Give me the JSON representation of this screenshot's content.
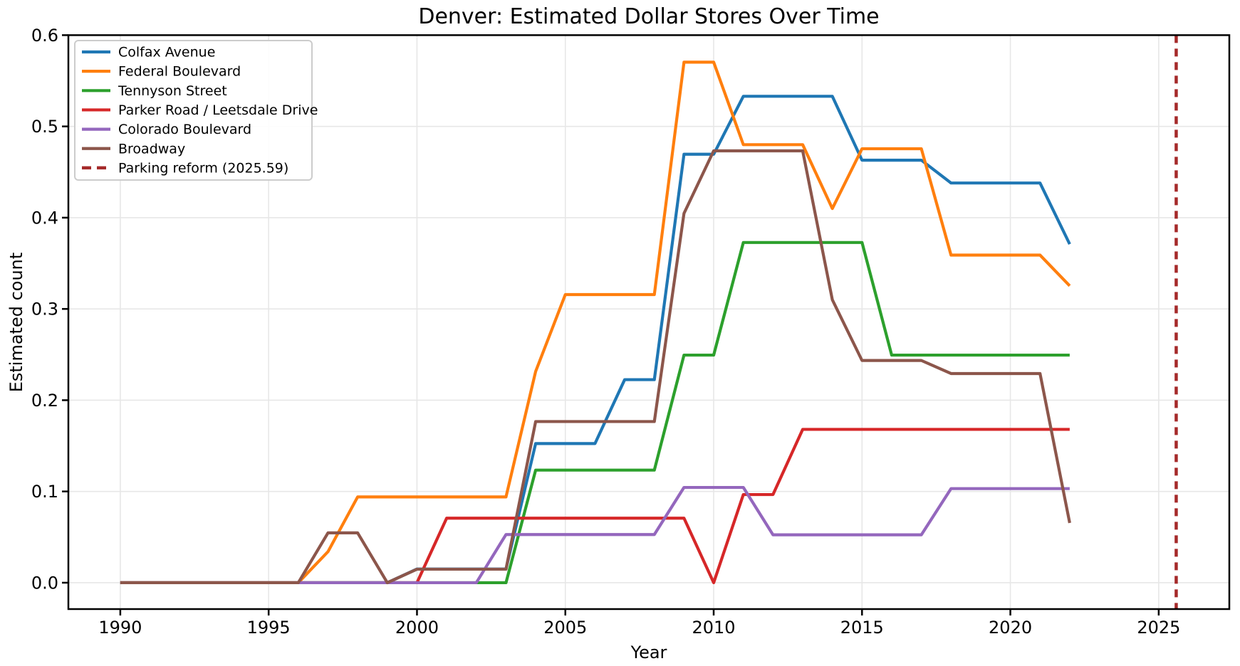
{
  "chart_data": {
    "type": "line",
    "title": "Denver: Estimated Dollar Stores Over Time",
    "xlabel": "Year",
    "ylabel": "Estimated count",
    "grid": true,
    "legend_position": "upper left",
    "xlim": [
      1988.25,
      2027.38
    ],
    "ylim": [
      -0.0289,
      0.6
    ],
    "xticks": [
      1990,
      1995,
      2000,
      2005,
      2010,
      2015,
      2020,
      2025
    ],
    "yticks": [
      0.0,
      0.1,
      0.2,
      0.3,
      0.4,
      0.5,
      0.6
    ],
    "ytick_labels": [
      "0.0",
      "0.1",
      "0.2",
      "0.3",
      "0.4",
      "0.5",
      "0.6"
    ],
    "x": [
      1990,
      1991,
      1992,
      1993,
      1994,
      1995,
      1996,
      1997,
      1998,
      1999,
      2000,
      2001,
      2002,
      2003,
      2004,
      2005,
      2006,
      2007,
      2008,
      2009,
      2010,
      2011,
      2012,
      2013,
      2014,
      2015,
      2016,
      2017,
      2018,
      2019,
      2020,
      2021,
      2022
    ],
    "series": [
      {
        "name": "Colfax Avenue",
        "color": "#1f77b4",
        "values": [
          0,
          0,
          0,
          0,
          0,
          0,
          0,
          0,
          0,
          0,
          0.015,
          0.015,
          0.015,
          0.015,
          0.1525,
          0.1525,
          0.1525,
          0.2225,
          0.2225,
          0.4695,
          0.4695,
          0.533,
          0.533,
          0.533,
          0.533,
          0.463,
          0.463,
          0.463,
          0.438,
          0.438,
          0.438,
          0.438,
          0.371
        ]
      },
      {
        "name": "Federal Boulevard",
        "color": "#ff7f0e",
        "values": [
          0,
          0,
          0,
          0,
          0,
          0,
          0,
          0.034,
          0.094,
          0.094,
          0.094,
          0.094,
          0.094,
          0.094,
          0.2315,
          0.3157,
          0.3157,
          0.3157,
          0.3157,
          0.5704,
          0.5704,
          0.48,
          0.48,
          0.48,
          0.41,
          0.4755,
          0.4755,
          0.4755,
          0.359,
          0.359,
          0.359,
          0.359,
          0.3253
        ]
      },
      {
        "name": "Tennyson Street",
        "color": "#2ca02c",
        "values": [
          0,
          0,
          0,
          0,
          0,
          0,
          0,
          0,
          0,
          0,
          0,
          0,
          0,
          0,
          0.1234,
          0.1234,
          0.1234,
          0.1234,
          0.1234,
          0.2494,
          0.2494,
          0.3728,
          0.3728,
          0.3728,
          0.3728,
          0.3728,
          0.2494,
          0.2494,
          0.2494,
          0.2494,
          0.2494,
          0.2494,
          0.2494
        ]
      },
      {
        "name": "Parker Road / Leetsdale Drive",
        "color": "#d62728",
        "values": [
          0,
          0,
          0,
          0,
          0,
          0,
          0,
          0,
          0,
          0,
          0,
          0.0707,
          0.0707,
          0.0707,
          0.0707,
          0.0707,
          0.0707,
          0.0707,
          0.0707,
          0.0707,
          0,
          0.0966,
          0.0966,
          0.168,
          0.168,
          0.168,
          0.168,
          0.168,
          0.168,
          0.168,
          0.168,
          0.168,
          0.168
        ]
      },
      {
        "name": "Colorado Boulevard",
        "color": "#9467bd",
        "values": [
          0,
          0,
          0,
          0,
          0,
          0,
          0,
          0,
          0,
          0,
          0,
          0,
          0,
          0.0528,
          0.0528,
          0.0528,
          0.0528,
          0.0528,
          0.0528,
          0.1044,
          0.1044,
          0.1044,
          0.0525,
          0.0525,
          0.0525,
          0.0525,
          0.0525,
          0.0525,
          0.1031,
          0.1031,
          0.1031,
          0.1031,
          0.1031
        ]
      },
      {
        "name": "Broadway",
        "color": "#8c564b",
        "values": [
          0,
          0,
          0,
          0,
          0,
          0,
          0,
          0.0546,
          0.0546,
          0,
          0.0148,
          0.0148,
          0.0148,
          0.0148,
          0.1766,
          0.1766,
          0.1766,
          0.1766,
          0.1766,
          0.4047,
          0.4732,
          0.4732,
          0.4732,
          0.4732,
          0.31,
          0.2435,
          0.2435,
          0.2435,
          0.2292,
          0.2292,
          0.2292,
          0.2292,
          0.0655
        ]
      }
    ],
    "vline": {
      "label": "Parking reform (2025.59)",
      "x": 2025.59,
      "color": "#a52a2a",
      "style": "dashed"
    },
    "colors": {
      "grid": "#e7e7e7",
      "spine": "#000000",
      "legend_border": "#cccccc",
      "legend_bg": "#ffffff"
    }
  }
}
